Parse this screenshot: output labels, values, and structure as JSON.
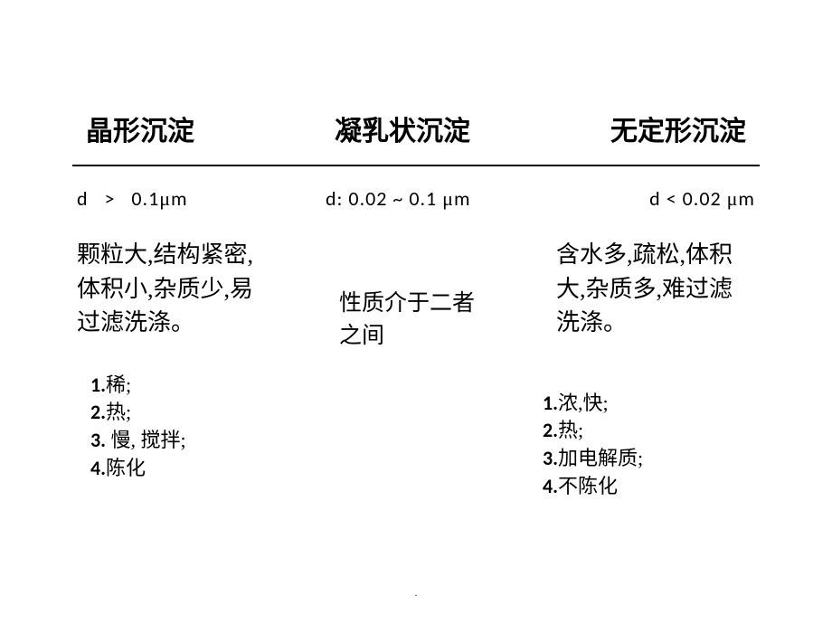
{
  "headers": {
    "col1": "晶形沉淀",
    "col2": "凝乳状沉淀",
    "col3": "无定形沉淀"
  },
  "sizes": {
    "col1_prefix": "d",
    "col1_op": ">",
    "col1_val": "0.1",
    "col1_unit_mu": "μ",
    "col1_unit_m": "m",
    "col2_prefix": "d: 0.02 ~ 0.1 ",
    "col2_unit_mu": "μ",
    "col2_unit_m": "m",
    "col3_prefix": "d < 0.02 ",
    "col3_unit_mu": "μ",
    "col3_unit_m": "m"
  },
  "descriptions": {
    "col1": "颗粒大,结构紧密,体积小,杂质少,易过滤洗涤。",
    "col2": "性质介于二者之间",
    "col3": "含水多,疏松,体积大,杂质多,难过滤洗涤。"
  },
  "conditions": {
    "col1": {
      "n1": "1.",
      "t1": "稀;",
      "n2": "2.",
      "t2": "热;",
      "n3": "3.",
      "t3": " 慢, 搅拌;",
      "n4": "4.",
      "t4": "陈化"
    },
    "col3": {
      "n1": "1.",
      "t1": "浓,快;",
      "n2": "2.",
      "t2": "热;",
      "n3": "3.",
      "t3": "加电解质;",
      "n4": "4.",
      "t4": "不陈化"
    }
  },
  "footer_dot": "."
}
